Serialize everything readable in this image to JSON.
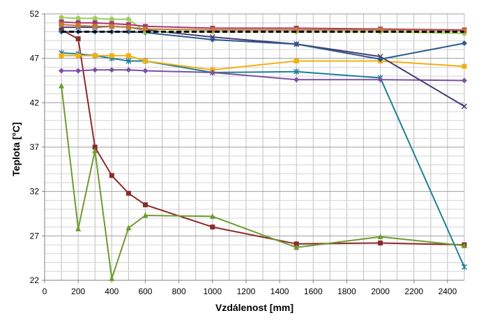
{
  "chart_data": {
    "type": "line",
    "xlabel": "Vzdálenost  [mm]",
    "ylabel": "Teplota [°C]",
    "xlim": [
      0,
      2500
    ],
    "ylim": [
      22,
      52
    ],
    "x_ticks": [
      "0",
      "200",
      "400",
      "600",
      "800",
      "1000",
      "1200",
      "1400",
      "1600",
      "1800",
      "2000",
      "2200",
      "2400"
    ],
    "y_ticks": [
      "22",
      "27",
      "32",
      "37",
      "42",
      "47",
      "52"
    ],
    "grid": "major and minor gridlines",
    "series": [
      {
        "color": "#8b2a2a",
        "marker": "square",
        "dashed": false,
        "x": [
          100,
          200,
          300,
          400,
          500,
          600,
          1000,
          1500,
          2000,
          2500
        ],
        "y": [
          50.2,
          49.2,
          37.0,
          33.8,
          31.8,
          30.5,
          28.0,
          26.1,
          26.2,
          26.0
        ]
      },
      {
        "color": "#6f9a2e",
        "marker": "triangle",
        "dashed": false,
        "x": [
          100,
          200,
          300,
          400,
          500,
          600,
          1000,
          1500,
          2000,
          2500
        ],
        "y": [
          43.9,
          27.8,
          36.6,
          22.2,
          27.9,
          29.3,
          29.2,
          25.7,
          26.9,
          25.9
        ]
      },
      {
        "color": "#1d7f99",
        "marker": "star",
        "dashed": false,
        "x": [
          100,
          200,
          300,
          400,
          500,
          600,
          1000,
          1500,
          2000,
          2500
        ],
        "y": [
          47.6,
          47.5,
          47.3,
          47.0,
          46.7,
          46.7,
          45.4,
          45.5,
          44.8,
          23.5
        ]
      },
      {
        "color": "#f2b011",
        "marker": "square",
        "dashed": false,
        "x": [
          100,
          200,
          300,
          400,
          500,
          600,
          1000,
          1500,
          2000,
          2500
        ],
        "y": [
          47.3,
          47.3,
          47.3,
          47.3,
          47.3,
          46.7,
          45.7,
          46.7,
          46.7,
          46.1
        ]
      },
      {
        "color": "#7b4fa3",
        "marker": "diamond",
        "dashed": false,
        "x": [
          100,
          200,
          300,
          400,
          500,
          600,
          1000,
          1500,
          2000,
          2500
        ],
        "y": [
          45.6,
          45.6,
          45.7,
          45.7,
          45.7,
          45.6,
          45.4,
          44.6,
          44.6,
          44.5
        ]
      },
      {
        "color": "#4a3a75",
        "marker": "x",
        "dashed": false,
        "x": [
          100,
          200,
          300,
          400,
          500,
          600,
          1000,
          1500,
          2000,
          2500
        ],
        "y": [
          50.5,
          50.5,
          50.5,
          50.6,
          50.5,
          50.2,
          49.4,
          48.6,
          47.2,
          41.6
        ]
      },
      {
        "color": "#2b5a8c",
        "marker": "diamond",
        "dashed": false,
        "x": [
          100,
          200,
          300,
          400,
          500,
          600,
          1000,
          1500,
          2000,
          2500
        ],
        "y": [
          50.0,
          50.0,
          50.0,
          50.0,
          50.0,
          49.9,
          49.1,
          48.6,
          46.9,
          48.7
        ]
      },
      {
        "color": "#9acd5a",
        "marker": "circle",
        "dashed": false,
        "x": [
          100,
          200,
          300,
          400,
          500,
          600,
          1000,
          1500,
          2000,
          2500
        ],
        "y": [
          51.6,
          51.5,
          51.5,
          51.4,
          51.4,
          50.0,
          50.0,
          50.0,
          50.0,
          49.8
        ]
      },
      {
        "color": "#a9376f",
        "marker": "square",
        "dashed": false,
        "x": [
          100,
          200,
          300,
          400,
          500,
          600,
          1000,
          1500,
          2000,
          2500
        ],
        "y": [
          51.1,
          51.0,
          51.0,
          50.9,
          50.8,
          50.6,
          50.4,
          50.4,
          50.3,
          50.2
        ]
      },
      {
        "color": "#c07a32",
        "marker": "square",
        "dashed": false,
        "x": [
          100,
          200,
          300,
          400,
          500,
          600,
          1000,
          1500,
          2000,
          2500
        ],
        "y": [
          50.8,
          50.7,
          50.6,
          50.6,
          50.5,
          50.3,
          50.2,
          50.2,
          50.2,
          50.1
        ]
      },
      {
        "color": "#000000",
        "marker": "none",
        "dashed": true,
        "x": [
          100,
          200,
          300,
          400,
          500,
          600,
          1000,
          1500,
          2000,
          2500
        ],
        "y": [
          50.0,
          50.0,
          50.0,
          50.0,
          50.0,
          50.0,
          50.0,
          50.0,
          50.0,
          50.0
        ]
      }
    ]
  }
}
